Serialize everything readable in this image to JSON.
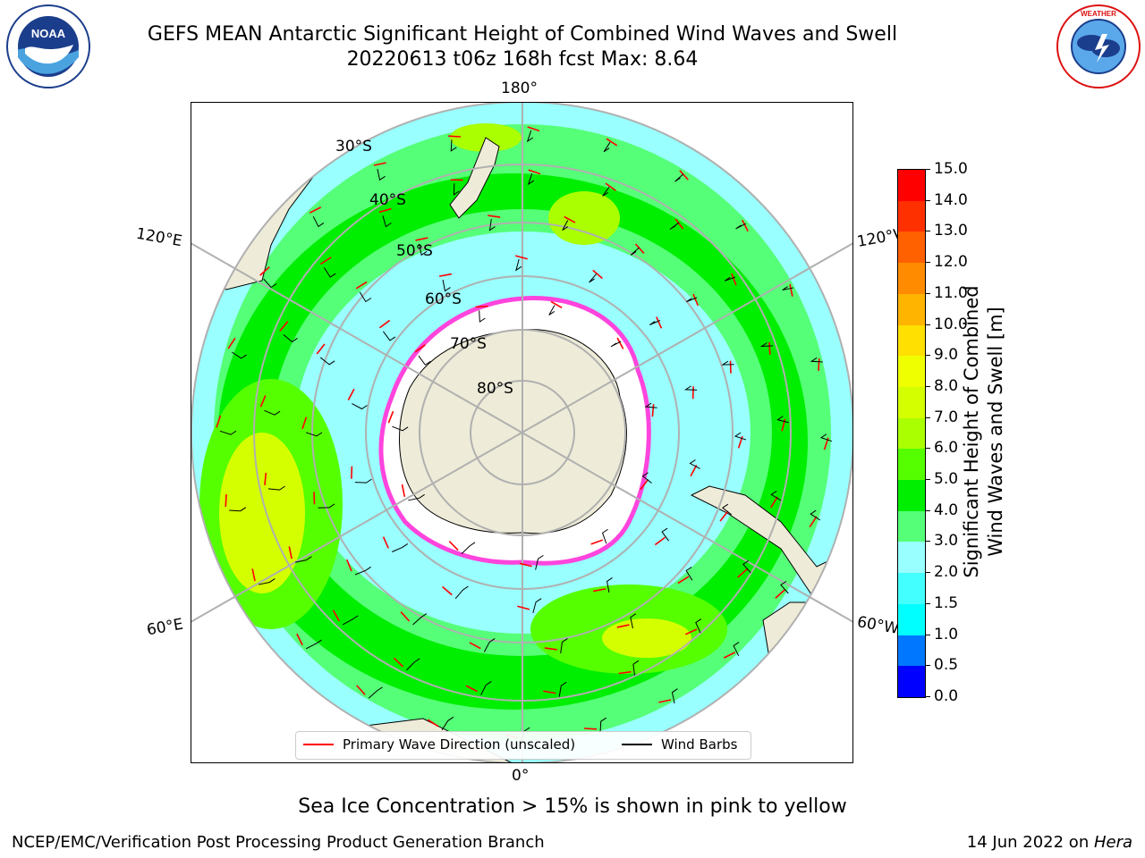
{
  "header": {
    "title_line1": "GEFS MEAN Antarctic Significant Height of Combined Wind Waves and Swell",
    "title_line2": "20220613 t06z 168h fcst   Max: 8.64"
  },
  "logos": {
    "noaa": {
      "text": "NOAA",
      "ring_text": "NATIONAL OCEANIC AND ATMOSPHERIC ADMINISTRATION · U.S. DEPARTMENT OF COMMERCE"
    },
    "nws": {
      "ring_text": "NATIONAL WEATHER SERVICE"
    }
  },
  "map": {
    "projection": "south-polar-stereographic",
    "longitude_labels": {
      "top": "180°",
      "bottom": "0°",
      "left_upper": "120°E",
      "left_lower": "60°E",
      "right_upper": "120°W",
      "right_lower": "60°W"
    },
    "latitude_labels": [
      "30°S",
      "40°S",
      "50°S",
      "60°S",
      "70°S",
      "80°S"
    ],
    "legend": {
      "wave_label": "Primary Wave Direction (unscaled)",
      "wave_color": "#ff0000",
      "barb_label": "Wind Barbs",
      "barb_color": "#000000"
    },
    "colors": {
      "land": "#eeecd8",
      "ocean_min": "#ffffff",
      "grid": "#b0b0b0",
      "ice": "#ff55dd"
    }
  },
  "colorbar": {
    "label_line1": "Significant Height of Combined",
    "label_line2": "Wind Waves and Swell [m]",
    "ticks": [
      "15.0",
      "14.0",
      "13.0",
      "12.0",
      "11.0",
      "10.0",
      "9.0",
      "8.0",
      "7.0",
      "6.0",
      "5.0",
      "4.0",
      "3.0",
      "2.0",
      "1.5",
      "1.0",
      "0.5",
      "0.0"
    ],
    "colors": [
      "#ff0000",
      "#ff3000",
      "#ff6000",
      "#ff8c00",
      "#ffb400",
      "#ffe000",
      "#f0ff00",
      "#d4ff00",
      "#aaff00",
      "#55ff00",
      "#00ee00",
      "#55ff77",
      "#99ffff",
      "#44ffff",
      "#00ffff",
      "#0077ff",
      "#0000ff"
    ]
  },
  "caption": "Sea Ice Concentration > 15% is shown in pink to yellow",
  "footer": {
    "left": "NCEP/EMC/Verification Post Processing Product Generation Branch",
    "right_date": "14 Jun 2022 on ",
    "right_machine": "Hera"
  }
}
